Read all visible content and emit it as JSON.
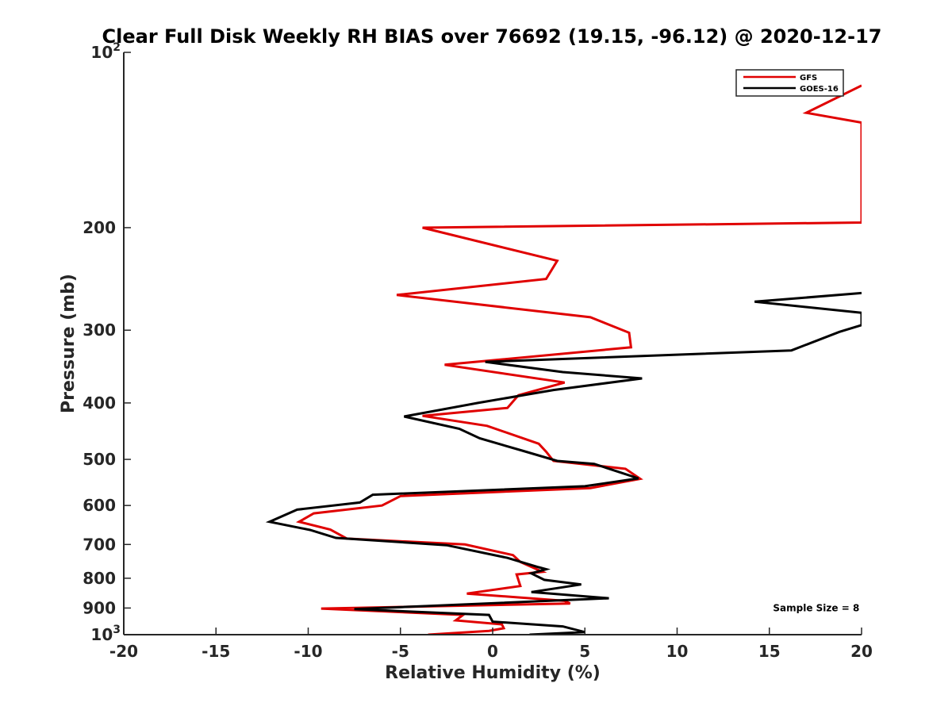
{
  "chart_data": {
    "type": "line",
    "title": "Clear Full Disk Weekly RH BIAS over 76692 (19.15, -96.12) @ 2020-12-17",
    "xlabel": "Relative Humidity (%)",
    "ylabel": "Pressure (mb)",
    "xlim": [
      -20,
      20
    ],
    "ylim": [
      1000,
      100
    ],
    "yscale": "log",
    "y_reversed": true,
    "grid": false,
    "legend_position": "top-right",
    "x_ticks": [
      {
        "value": -20,
        "label": "-20"
      },
      {
        "value": -15,
        "label": "-15"
      },
      {
        "value": -10,
        "label": "-10"
      },
      {
        "value": -5,
        "label": "-5"
      },
      {
        "value": 0,
        "label": "0"
      },
      {
        "value": 5,
        "label": "5"
      },
      {
        "value": 10,
        "label": "10"
      },
      {
        "value": 15,
        "label": "15"
      },
      {
        "value": 20,
        "label": "20"
      }
    ],
    "y_ticks": [
      {
        "value": 100,
        "label": "10",
        "sup": "2"
      },
      {
        "value": 200,
        "label": "200"
      },
      {
        "value": 300,
        "label": "300"
      },
      {
        "value": 400,
        "label": "400"
      },
      {
        "value": 500,
        "label": "500"
      },
      {
        "value": 600,
        "label": "600"
      },
      {
        "value": 700,
        "label": "700"
      },
      {
        "value": 800,
        "label": "800"
      },
      {
        "value": 900,
        "label": "900"
      },
      {
        "value": 1000,
        "label": "10",
        "sup": "3"
      }
    ],
    "series": [
      {
        "name": "GFS",
        "color": "#e00000",
        "points": [
          [
            20.0,
            114
          ],
          [
            17.0,
            127
          ],
          [
            20.0,
            132
          ],
          [
            20.0,
            196
          ],
          [
            -3.8,
            200
          ],
          [
            3.5,
            228
          ],
          [
            2.9,
            245
          ],
          [
            -5.2,
            261
          ],
          [
            5.3,
            285
          ],
          [
            7.4,
            303
          ],
          [
            7.5,
            321
          ],
          [
            -2.6,
            344
          ],
          [
            3.9,
            369
          ],
          [
            1.4,
            388
          ],
          [
            0.8,
            408
          ],
          [
            -3.8,
            421
          ],
          [
            -0.3,
            438
          ],
          [
            2.5,
            470
          ],
          [
            2.9,
            485
          ],
          [
            3.3,
            503
          ],
          [
            7.2,
            519
          ],
          [
            8.0,
            540
          ],
          [
            5.3,
            560
          ],
          [
            -5.0,
            578
          ],
          [
            -6.0,
            600
          ],
          [
            -9.7,
            619
          ],
          [
            -10.5,
            640
          ],
          [
            -8.8,
            660
          ],
          [
            -7.9,
            684
          ],
          [
            -1.5,
            700
          ],
          [
            1.1,
            730
          ],
          [
            1.5,
            750
          ],
          [
            2.7,
            780
          ],
          [
            1.3,
            788
          ],
          [
            1.5,
            825
          ],
          [
            -1.4,
            850
          ],
          [
            3.9,
            875
          ],
          [
            4.2,
            884
          ],
          [
            -9.3,
            902
          ],
          [
            -1.6,
            925
          ],
          [
            -2.0,
            945
          ],
          [
            0.5,
            960
          ],
          [
            0.6,
            975
          ],
          [
            -0.2,
            985
          ],
          [
            -3.5,
            1000
          ]
        ]
      },
      {
        "name": "GOES-16",
        "color": "#000000",
        "points": [
          [
            20.0,
            259
          ],
          [
            14.2,
            268
          ],
          [
            20.0,
            280
          ],
          [
            20.0,
            294
          ],
          [
            18.8,
            302
          ],
          [
            16.2,
            325
          ],
          [
            -0.4,
            340
          ],
          [
            3.8,
            354
          ],
          [
            8.1,
            363
          ],
          [
            3.3,
            380
          ],
          [
            -0.8,
            400
          ],
          [
            -4.8,
            422
          ],
          [
            -1.8,
            443
          ],
          [
            -0.7,
            460
          ],
          [
            1.6,
            483
          ],
          [
            3.5,
            503
          ],
          [
            5.5,
            509
          ],
          [
            7.9,
            539
          ],
          [
            5.0,
            556
          ],
          [
            -6.5,
            575
          ],
          [
            -7.2,
            593
          ],
          [
            -10.6,
            610
          ],
          [
            -12.1,
            640
          ],
          [
            -9.9,
            661
          ],
          [
            -8.5,
            682
          ],
          [
            -2.5,
            702
          ],
          [
            0.8,
            738
          ],
          [
            2.5,
            766
          ],
          [
            2.9,
            772
          ],
          [
            2.1,
            785
          ],
          [
            2.8,
            805
          ],
          [
            4.8,
            820
          ],
          [
            2.1,
            845
          ],
          [
            6.3,
            866
          ],
          [
            -7.5,
            904
          ],
          [
            -0.2,
            925
          ],
          [
            0.0,
            950
          ],
          [
            3.8,
            968
          ],
          [
            5.0,
            990
          ],
          [
            2.0,
            1000
          ]
        ]
      }
    ],
    "annotations": [
      {
        "text": "Sample Size = 8",
        "x": 15.2,
        "y": 900
      }
    ]
  }
}
